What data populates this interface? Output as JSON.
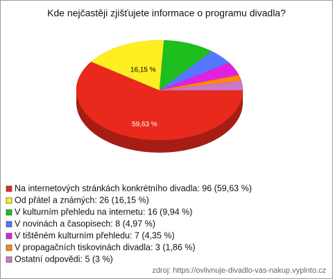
{
  "chart_data": {
    "type": "pie3d",
    "title": "Kde nejčastěji zjišťujete informace o programu divadla?",
    "categories": [
      "Na internetových stránkách konkrétního divadla: 96 (59,63 %)",
      "Od přátel a známých: 26 (16,15 %)",
      "V kulturním přehledu na internetu: 16 (9,94 %)",
      "V novinách a časopisech: 8 (4,97 %)",
      "V tištěném kulturním přehledu: 7 (4,35 %)",
      "V propagačních tiskovinách divadla: 3 (1,86 %)",
      "Ostatní odpovědi: 5 (3 %)"
    ],
    "values": [
      59.63,
      16.15,
      9.94,
      4.97,
      4.35,
      1.86,
      3
    ],
    "value_labels": [
      "59,63 %",
      "16,15 %",
      null,
      null,
      null,
      null,
      null
    ],
    "colors": [
      "#e8291c",
      "#ffee22",
      "#1ebe1e",
      "#5577ff",
      "#e022e0",
      "#ff8a00",
      "#cc77cc"
    ],
    "source": "zdroj: https://ovlivnuje-divadlo-vas-nakup.vyplnto.cz"
  }
}
